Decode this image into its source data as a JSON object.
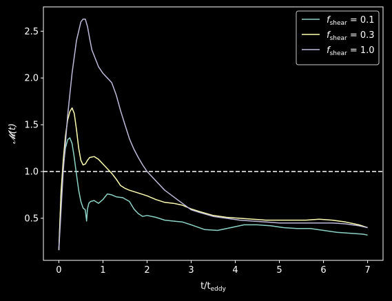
{
  "chart_data": {
    "type": "line",
    "xlabel": "t/t_eddy",
    "xlabel_main": "t/t",
    "xlabel_sub": "eddy",
    "ylabel": "𝓜(t)",
    "xlim": [
      -0.35,
      7.35
    ],
    "ylim": [
      0.05,
      2.76
    ],
    "xticks": [
      0,
      1,
      2,
      3,
      4,
      5,
      6,
      7
    ],
    "yticks": [
      0.5,
      1.0,
      1.5,
      2.0,
      2.5
    ],
    "xtick_labels": [
      "0",
      "1",
      "2",
      "3",
      "4",
      "5",
      "6",
      "7"
    ],
    "ytick_labels": [
      "0.5",
      "1.0",
      "1.5",
      "2.0",
      "2.5"
    ],
    "grid": false,
    "legend_position": "top-right",
    "reference_line": {
      "y": 1.0,
      "style": "dashed",
      "color": "#ffffff"
    },
    "series": [
      {
        "name": "f_shear = 0.1",
        "label_f": "f",
        "label_sub": "shear",
        "label_eq": " = 0.1",
        "color": "#8dd3c7",
        "x": [
          0,
          0.05,
          0.1,
          0.15,
          0.2,
          0.25,
          0.3,
          0.35,
          0.4,
          0.45,
          0.5,
          0.55,
          0.6,
          0.63,
          0.65,
          0.68,
          0.72,
          0.8,
          0.9,
          1.0,
          1.1,
          1.2,
          1.3,
          1.45,
          1.6,
          1.7,
          1.8,
          1.9,
          2.0,
          2.2,
          2.4,
          2.6,
          2.8,
          3.0,
          3.3,
          3.6,
          3.9,
          4.2,
          4.5,
          4.8,
          5.1,
          5.4,
          5.7,
          6.0,
          6.3,
          6.6,
          6.9,
          7.0
        ],
        "y": [
          0.16,
          0.75,
          1.05,
          1.25,
          1.34,
          1.36,
          1.3,
          1.15,
          0.97,
          0.8,
          0.68,
          0.61,
          0.59,
          0.47,
          0.6,
          0.66,
          0.68,
          0.69,
          0.66,
          0.7,
          0.76,
          0.75,
          0.73,
          0.72,
          0.68,
          0.6,
          0.55,
          0.52,
          0.53,
          0.51,
          0.48,
          0.47,
          0.46,
          0.43,
          0.38,
          0.37,
          0.4,
          0.43,
          0.43,
          0.42,
          0.4,
          0.39,
          0.39,
          0.37,
          0.35,
          0.34,
          0.33,
          0.32
        ]
      },
      {
        "name": "f_shear = 0.3",
        "label_f": "f",
        "label_sub": "shear",
        "label_eq": " = 0.3",
        "color": "#ffffb3",
        "x": [
          0,
          0.05,
          0.1,
          0.15,
          0.2,
          0.25,
          0.3,
          0.35,
          0.4,
          0.45,
          0.5,
          0.55,
          0.6,
          0.65,
          0.7,
          0.8,
          0.9,
          1.0,
          1.1,
          1.2,
          1.3,
          1.4,
          1.5,
          1.6,
          1.8,
          2.0,
          2.2,
          2.4,
          2.6,
          2.8,
          3.0,
          3.2,
          3.5,
          3.8,
          4.1,
          4.4,
          4.7,
          5.0,
          5.3,
          5.6,
          5.9,
          6.2,
          6.5,
          6.8,
          7.0
        ],
        "y": [
          0.16,
          0.78,
          1.12,
          1.38,
          1.55,
          1.64,
          1.68,
          1.62,
          1.45,
          1.25,
          1.12,
          1.07,
          1.08,
          1.12,
          1.15,
          1.16,
          1.13,
          1.08,
          1.03,
          0.98,
          0.92,
          0.85,
          0.82,
          0.8,
          0.77,
          0.74,
          0.7,
          0.67,
          0.66,
          0.64,
          0.6,
          0.57,
          0.53,
          0.51,
          0.5,
          0.49,
          0.48,
          0.48,
          0.48,
          0.48,
          0.49,
          0.48,
          0.46,
          0.43,
          0.4
        ]
      },
      {
        "name": "f_shear = 1.0",
        "label_f": "f",
        "label_sub": "shear",
        "label_eq": " = 1.0",
        "color": "#bebada",
        "x": [
          0,
          0.1,
          0.2,
          0.3,
          0.4,
          0.5,
          0.55,
          0.6,
          0.65,
          0.7,
          0.75,
          0.8,
          0.9,
          1.0,
          1.1,
          1.2,
          1.3,
          1.4,
          1.5,
          1.6,
          1.7,
          1.8,
          1.9,
          2.0,
          2.2,
          2.4,
          2.6,
          2.8,
          3.0,
          3.2,
          3.5,
          3.8,
          4.1,
          4.4,
          4.7,
          5.0,
          5.3,
          5.6,
          5.9,
          6.2,
          6.5,
          6.8,
          7.0
        ],
        "y": [
          0.16,
          1.0,
          1.6,
          2.05,
          2.4,
          2.6,
          2.63,
          2.63,
          2.55,
          2.42,
          2.3,
          2.24,
          2.12,
          2.05,
          2.0,
          1.95,
          1.82,
          1.65,
          1.5,
          1.35,
          1.24,
          1.15,
          1.07,
          1.0,
          0.9,
          0.8,
          0.73,
          0.66,
          0.59,
          0.56,
          0.52,
          0.5,
          0.48,
          0.47,
          0.46,
          0.45,
          0.45,
          0.45,
          0.45,
          0.45,
          0.44,
          0.42,
          0.4
        ]
      }
    ]
  }
}
